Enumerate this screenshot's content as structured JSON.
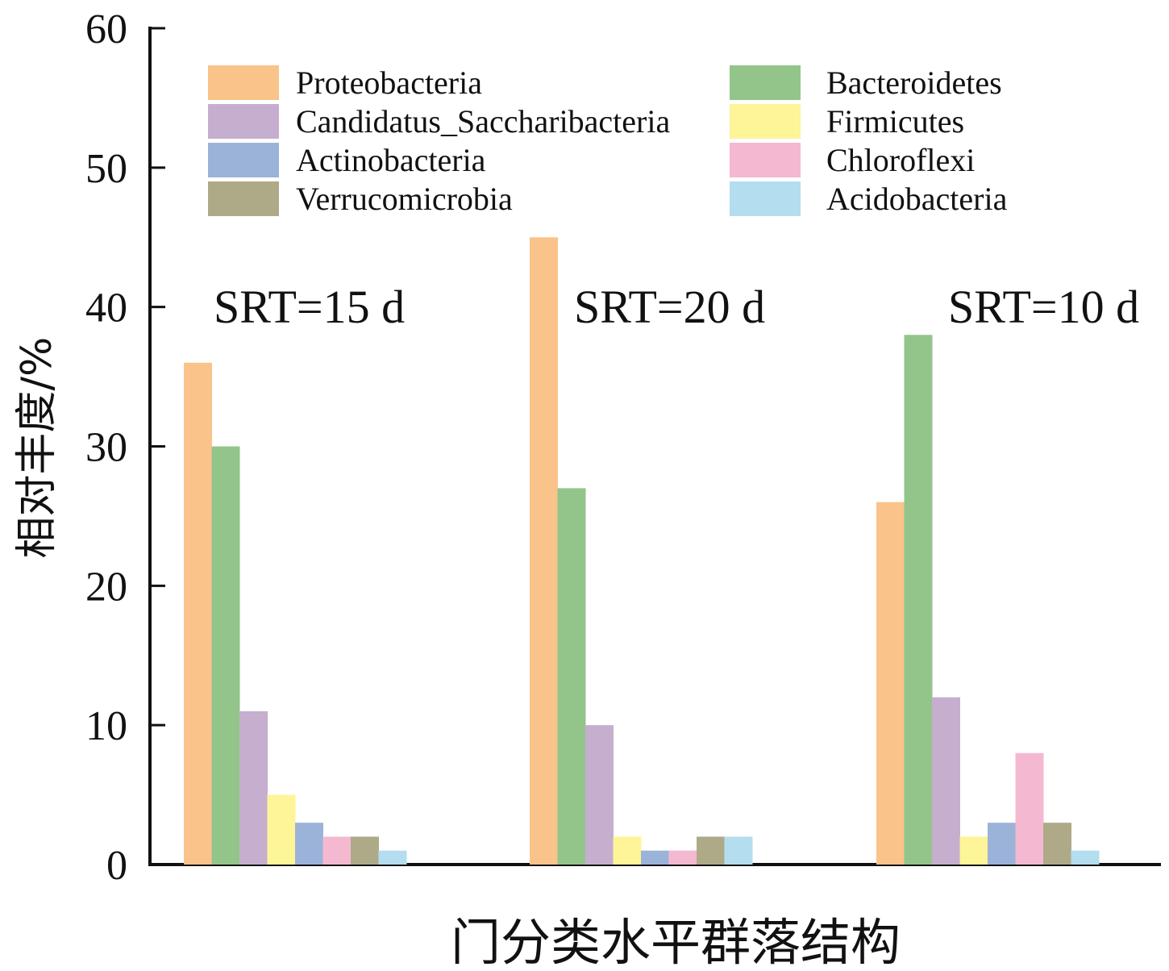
{
  "chart_data": {
    "type": "bar",
    "title": "",
    "xlabel": "门分类水平群落结构",
    "ylabel": "相对丰度/%",
    "ylim": [
      0,
      60
    ],
    "yticks": [
      "0",
      "10",
      "20",
      "30",
      "40",
      "50",
      "60"
    ],
    "grid": false,
    "legend_position": "top",
    "categories": [
      "SRT=15 d",
      "SRT=20 d",
      "SRT=10 d"
    ],
    "series": [
      {
        "name": "Proteobacteria",
        "color": "#F9C38A",
        "values": [
          36,
          45,
          26
        ]
      },
      {
        "name": "Bacteroidetes",
        "color": "#93C58B",
        "values": [
          30,
          27,
          38
        ]
      },
      {
        "name": "Candidatus_Saccharibacteria",
        "color": "#C6AECE",
        "values": [
          11,
          10,
          12
        ]
      },
      {
        "name": "Firmicutes",
        "color": "#FEF498",
        "values": [
          5,
          2,
          2
        ]
      },
      {
        "name": "Actinobacteria",
        "color": "#9BB3D8",
        "values": [
          3,
          1,
          3
        ]
      },
      {
        "name": "Chloroflexi",
        "color": "#F4B8D1",
        "values": [
          2,
          1,
          8
        ]
      },
      {
        "name": "Verrucomicrobia",
        "color": "#AEAA88",
        "values": [
          2,
          2,
          3
        ]
      },
      {
        "name": "Acidobacteria",
        "color": "#B4DDEF",
        "values": [
          1,
          2,
          1
        ]
      }
    ],
    "legend_order": [
      "Proteobacteria",
      "Candidatus_Saccharibacteria",
      "Actinobacteria",
      "Verrucomicrobia",
      "Bacteroidetes",
      "Firmicutes",
      "Chloroflexi",
      "Acidobacteria"
    ]
  }
}
